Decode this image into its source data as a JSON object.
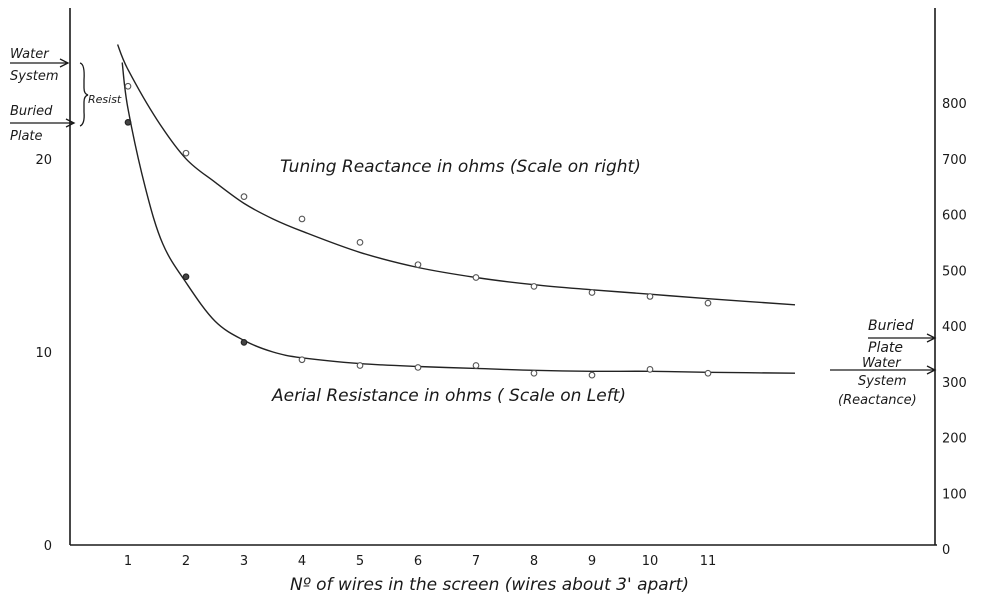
{
  "chart_data": {
    "type": "line",
    "xlabel": "Nº of wires in the screen (wires about 3' apart)",
    "x_ticks": [
      "1",
      "2",
      "3",
      "4",
      "5",
      "6",
      "7",
      "8",
      "9",
      "10",
      "11"
    ],
    "xlim": [
      0,
      14
    ],
    "left_axis": {
      "ticks": [
        "0",
        "10",
        "20"
      ],
      "ylim": [
        0,
        27
      ]
    },
    "right_axis": {
      "ticks": [
        "0",
        "100",
        "200",
        "300",
        "400",
        "500",
        "600",
        "700",
        "800"
      ],
      "ylim": [
        0,
        1000
      ]
    },
    "series": [
      {
        "name": "Tuning Reactance in ohms (Scale on right)",
        "axis": "right",
        "x": [
          1,
          2,
          3,
          4,
          5,
          6,
          7,
          8,
          9,
          10,
          11
        ],
        "y": [
          830,
          710,
          632,
          592,
          550,
          510,
          487,
          471,
          460,
          453,
          441
        ],
        "curve_x": [
          0.82,
          1,
          1.5,
          2,
          2.5,
          3,
          3.5,
          4,
          5,
          6,
          7,
          8,
          9,
          10,
          11,
          12.5
        ],
        "curve_y": [
          905,
          860,
          770,
          700,
          658,
          620,
          592,
          570,
          532,
          505,
          487,
          474,
          465,
          457,
          449,
          438
        ]
      },
      {
        "name": "Aerial Resistance in ohms ( Scale on Left)",
        "axis": "left",
        "x": [
          1,
          2,
          3,
          4,
          5,
          6,
          7,
          8,
          9,
          10,
          11
        ],
        "y": [
          21.9,
          13.9,
          10.5,
          9.6,
          9.3,
          9.2,
          9.3,
          8.9,
          8.8,
          9.1,
          8.9
        ],
        "curve_x": [
          0.9,
          1,
          1.3,
          1.6,
          2,
          2.5,
          3,
          3.5,
          4,
          5,
          6,
          7,
          8,
          9,
          10,
          11,
          12.5
        ],
        "curve_y": [
          25.0,
          22.6,
          18.5,
          15.6,
          13.6,
          11.6,
          10.6,
          10.0,
          9.7,
          9.4,
          9.25,
          9.15,
          9.05,
          9.0,
          9.0,
          8.95,
          8.9
        ]
      }
    ],
    "annotations": {
      "left_water": [
        "Water",
        "System"
      ],
      "left_buried": [
        "Buried",
        "Plate"
      ],
      "resist": "Resist",
      "right_buried": [
        "Buried",
        "Plate"
      ],
      "right_water": [
        "Water",
        "System",
        "(Reactance)"
      ]
    }
  }
}
